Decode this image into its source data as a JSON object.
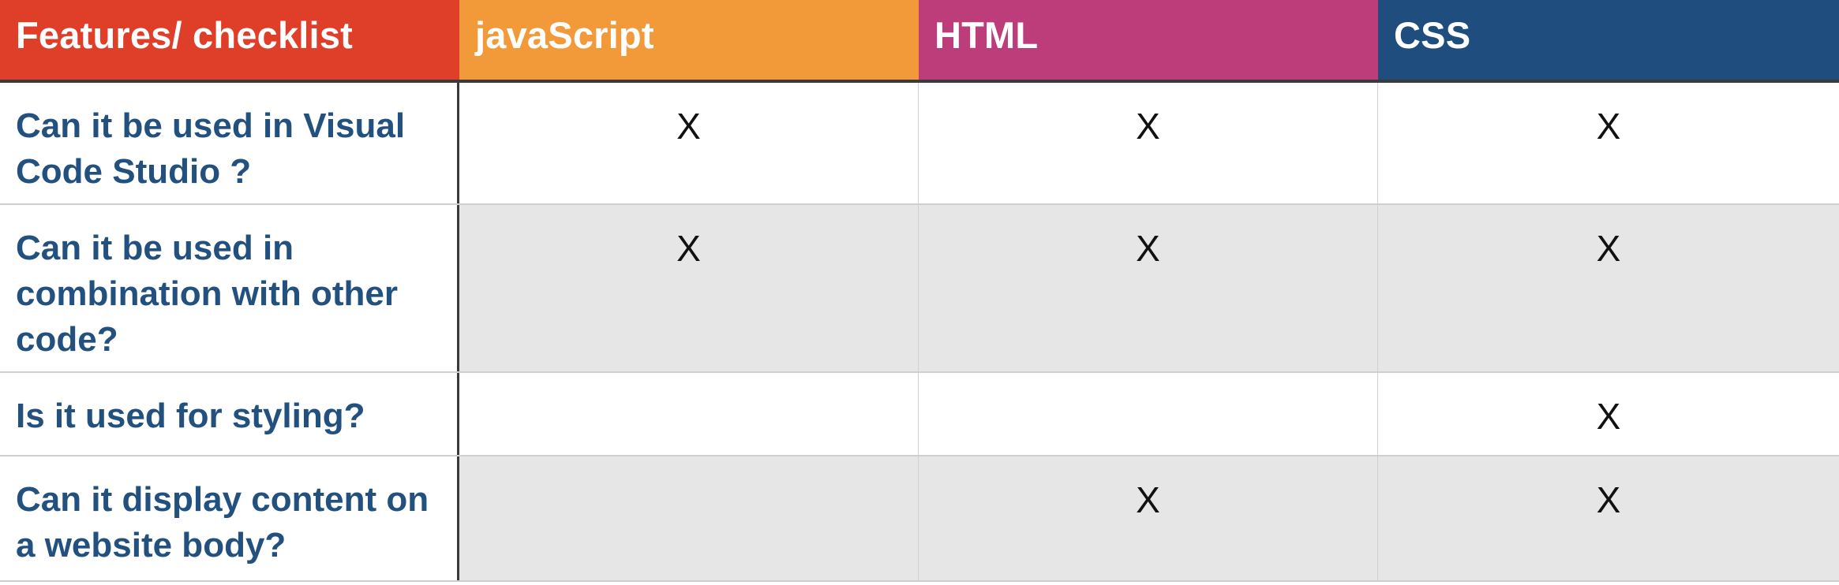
{
  "table": {
    "headers": [
      "Features/ checklist",
      "javaScript",
      "HTML",
      "CSS"
    ],
    "header_colors": [
      "#df3f28",
      "#f29a3a",
      "#bd3c7a",
      "#1f4e7e"
    ],
    "rows": [
      {
        "feature": "Can it be used in Visual Code Studio ?",
        "javascript": "X",
        "html": "X",
        "css": "X"
      },
      {
        "feature": "Can it be used in combination with other code?",
        "javascript": "X",
        "html": "X",
        "css": "X"
      },
      {
        "feature": "Is it used for styling?",
        "javascript": "",
        "html": "",
        "css": "X"
      },
      {
        "feature": "Can it display content on a website body?",
        "javascript": "",
        "html": "X",
        "css": "X"
      }
    ]
  }
}
